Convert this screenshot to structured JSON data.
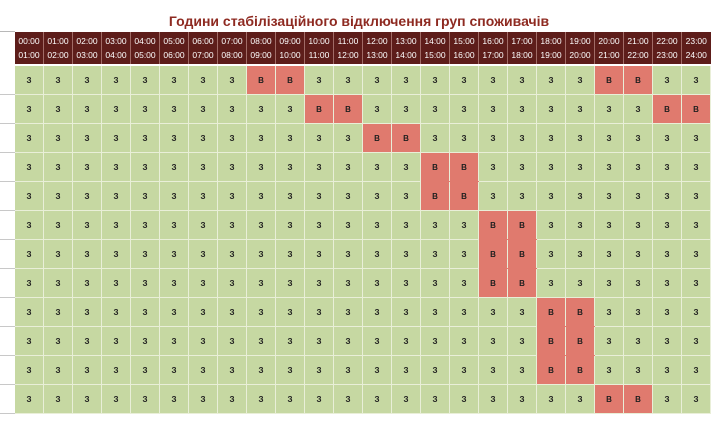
{
  "title": "Години стабілізаційного відключення груп споживачів",
  "colors": {
    "header_bg": "#5d1d1a",
    "title_text": "#8e2a21",
    "on_cell": "#c6d8a2",
    "off_cell": "#e07a6e"
  },
  "hours": [
    {
      "from": "00:00",
      "to": "01:00"
    },
    {
      "from": "01:00",
      "to": "02:00"
    },
    {
      "from": "02:00",
      "to": "03:00"
    },
    {
      "from": "03:00",
      "to": "04:00"
    },
    {
      "from": "04:00",
      "to": "05:00"
    },
    {
      "from": "05:00",
      "to": "06:00"
    },
    {
      "from": "06:00",
      "to": "07:00"
    },
    {
      "from": "07:00",
      "to": "08:00"
    },
    {
      "from": "08:00",
      "to": "09:00"
    },
    {
      "from": "09:00",
      "to": "10:00"
    },
    {
      "from": "10:00",
      "to": "11:00"
    },
    {
      "from": "11:00",
      "to": "12:00"
    },
    {
      "from": "12:00",
      "to": "13:00"
    },
    {
      "from": "13:00",
      "to": "14:00"
    },
    {
      "from": "14:00",
      "to": "15:00"
    },
    {
      "from": "15:00",
      "to": "16:00"
    },
    {
      "from": "16:00",
      "to": "17:00"
    },
    {
      "from": "17:00",
      "to": "18:00"
    },
    {
      "from": "18:00",
      "to": "19:00"
    },
    {
      "from": "19:00",
      "to": "20:00"
    },
    {
      "from": "20:00",
      "to": "21:00"
    },
    {
      "from": "21:00",
      "to": "22:00"
    },
    {
      "from": "22:00",
      "to": "23:00"
    },
    {
      "from": "23:00",
      "to": "24:00"
    }
  ],
  "rows": [
    [
      "З",
      "З",
      "З",
      "З",
      "З",
      "З",
      "З",
      "З",
      "В",
      "В",
      "З",
      "З",
      "З",
      "З",
      "З",
      "З",
      "З",
      "З",
      "З",
      "З",
      "В",
      "В",
      "З",
      "З"
    ],
    [
      "З",
      "З",
      "З",
      "З",
      "З",
      "З",
      "З",
      "З",
      "З",
      "З",
      "В",
      "В",
      "З",
      "З",
      "З",
      "З",
      "З",
      "З",
      "З",
      "З",
      "З",
      "З",
      "В",
      "В"
    ],
    [
      "З",
      "З",
      "З",
      "З",
      "З",
      "З",
      "З",
      "З",
      "З",
      "З",
      "З",
      "З",
      "В",
      "В",
      "З",
      "З",
      "З",
      "З",
      "З",
      "З",
      "З",
      "З",
      "З",
      "З"
    ],
    [
      "З",
      "З",
      "З",
      "З",
      "З",
      "З",
      "З",
      "З",
      "З",
      "З",
      "З",
      "З",
      "З",
      "З",
      "В",
      "В",
      "З",
      "З",
      "З",
      "З",
      "З",
      "З",
      "З",
      "З"
    ],
    [
      "З",
      "З",
      "З",
      "З",
      "З",
      "З",
      "З",
      "З",
      "З",
      "З",
      "З",
      "З",
      "З",
      "З",
      "В",
      "В",
      "З",
      "З",
      "З",
      "З",
      "З",
      "З",
      "З",
      "З"
    ],
    [
      "З",
      "З",
      "З",
      "З",
      "З",
      "З",
      "З",
      "З",
      "З",
      "З",
      "З",
      "З",
      "З",
      "З",
      "З",
      "З",
      "В",
      "В",
      "З",
      "З",
      "З",
      "З",
      "З",
      "З"
    ],
    [
      "З",
      "З",
      "З",
      "З",
      "З",
      "З",
      "З",
      "З",
      "З",
      "З",
      "З",
      "З",
      "З",
      "З",
      "З",
      "З",
      "В",
      "В",
      "З",
      "З",
      "З",
      "З",
      "З",
      "З"
    ],
    [
      "З",
      "З",
      "З",
      "З",
      "З",
      "З",
      "З",
      "З",
      "З",
      "З",
      "З",
      "З",
      "З",
      "З",
      "З",
      "З",
      "В",
      "В",
      "З",
      "З",
      "З",
      "З",
      "З",
      "З"
    ],
    [
      "З",
      "З",
      "З",
      "З",
      "З",
      "З",
      "З",
      "З",
      "З",
      "З",
      "З",
      "З",
      "З",
      "З",
      "З",
      "З",
      "З",
      "З",
      "В",
      "В",
      "З",
      "З",
      "З",
      "З"
    ],
    [
      "З",
      "З",
      "З",
      "З",
      "З",
      "З",
      "З",
      "З",
      "З",
      "З",
      "З",
      "З",
      "З",
      "З",
      "З",
      "З",
      "З",
      "З",
      "В",
      "В",
      "З",
      "З",
      "З",
      "З"
    ],
    [
      "З",
      "З",
      "З",
      "З",
      "З",
      "З",
      "З",
      "З",
      "З",
      "З",
      "З",
      "З",
      "З",
      "З",
      "З",
      "З",
      "З",
      "З",
      "В",
      "В",
      "З",
      "З",
      "З",
      "З"
    ],
    [
      "З",
      "З",
      "З",
      "З",
      "З",
      "З",
      "З",
      "З",
      "З",
      "З",
      "З",
      "З",
      "З",
      "З",
      "З",
      "З",
      "З",
      "З",
      "З",
      "З",
      "В",
      "В",
      "З",
      "З"
    ]
  ]
}
